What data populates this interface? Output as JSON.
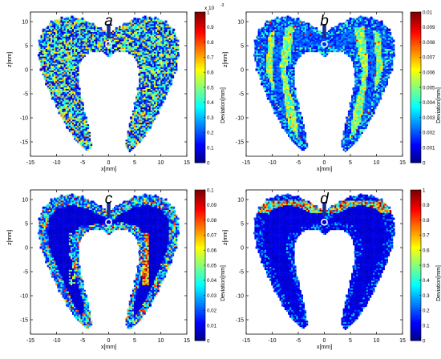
{
  "figure": {
    "panel_count": 4
  },
  "chart_data": [
    {
      "type": "heatmap",
      "panel_label": "a",
      "title": "",
      "xlabel": "x[mm]",
      "ylabel": "z[mm]",
      "xlim": [
        -15,
        15
      ],
      "ylim": [
        -18,
        12
      ],
      "x_ticks": [
        "-15",
        "-10",
        "-5",
        "0",
        "5",
        "10",
        "15"
      ],
      "y_ticks": [
        "10",
        "5",
        "0",
        "-5",
        "-10",
        "-15"
      ],
      "colorbar": {
        "label": "Deviation[mm]",
        "range": [
          0,
          1
        ],
        "ticks": [
          "0",
          "0.1",
          "0.2",
          "0.3",
          "0.4",
          "0.5",
          "0.6",
          "0.7",
          "0.8",
          "0.9",
          "1"
        ],
        "exponent": "x 10",
        "exponent_power": "-3",
        "colormap": "jet"
      },
      "pattern": "mixed fine speckle of blue, cyan and yellow across the whole surface",
      "grid": false
    },
    {
      "type": "heatmap",
      "panel_label": "b",
      "title": "",
      "xlabel": "x[mm]",
      "ylabel": "z[mm]",
      "xlim": [
        -15,
        15
      ],
      "ylim": [
        -18,
        12
      ],
      "x_ticks": [
        "-15",
        "-10",
        "-5",
        "0",
        "5",
        "10",
        "15"
      ],
      "y_ticks": [
        "10",
        "5",
        "0",
        "-5",
        "-10",
        "-15"
      ],
      "colorbar": {
        "label": "Deviation[mm]",
        "range": [
          0,
          0.01
        ],
        "ticks": [
          "0",
          "0.001",
          "0.002",
          "0.003",
          "0.004",
          "0.005",
          "0.006",
          "0.007",
          "0.008",
          "0.009",
          "0.01"
        ],
        "colormap": "jet"
      },
      "pattern": "higher deviation bands along inner and outer arms",
      "grid": false
    },
    {
      "type": "heatmap",
      "panel_label": "c",
      "title": "",
      "xlabel": "x[mm]",
      "ylabel": "z[mm]",
      "xlim": [
        -15,
        15
      ],
      "ylim": [
        -18,
        12
      ],
      "x_ticks": [
        "-15",
        "-10",
        "-5",
        "0",
        "5",
        "10",
        "15"
      ],
      "y_ticks": [
        "10",
        "5",
        "0",
        "-5",
        "-10",
        "-15"
      ],
      "colorbar": {
        "label": "Deviation[mm]",
        "range": [
          0,
          0.1
        ],
        "ticks": [
          "0",
          "0.01",
          "0.02",
          "0.03",
          "0.04",
          "0.05",
          "0.06",
          "0.07",
          "0.08",
          "0.09",
          "0.1"
        ],
        "colormap": "jet"
      },
      "pattern": "dark blue interior with speckled border, hot strip on right inner arm",
      "grid": false
    },
    {
      "type": "heatmap",
      "panel_label": "d",
      "title": "",
      "xlabel": "x[mm]",
      "ylabel": "z[mm]",
      "xlim": [
        -15,
        15
      ],
      "ylim": [
        -18,
        12
      ],
      "x_ticks": [
        "-15",
        "-10",
        "-5",
        "0",
        "5",
        "10",
        "15"
      ],
      "y_ticks": [
        "10",
        "5",
        "0",
        "-5",
        "-10",
        "-15"
      ],
      "colorbar": {
        "label": "Deviation[mm]",
        "range": [
          0,
          1
        ],
        "ticks": [
          "0",
          "0.1",
          "0.2",
          "0.3",
          "0.4",
          "0.5",
          "0.6",
          "0.7",
          "0.8",
          "0.9",
          "1"
        ],
        "colormap": "jet"
      },
      "pattern": "mostly dark blue, hot band along the top ridge",
      "grid": false
    }
  ]
}
